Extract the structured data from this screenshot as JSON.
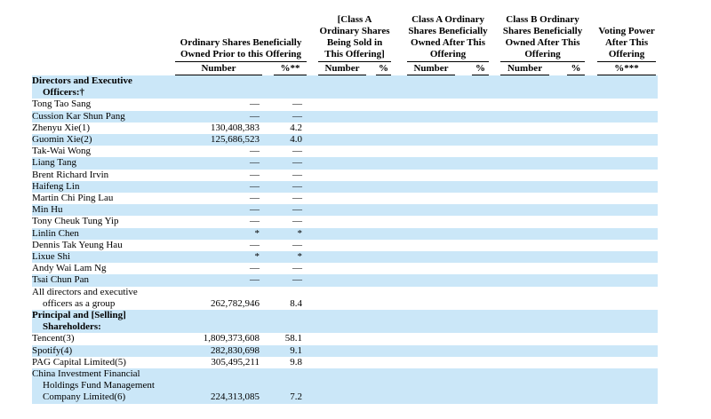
{
  "colors": {
    "row_highlight": "#cbe7f8",
    "rule": "#000000",
    "text": "#000000",
    "page_background": "#ffffff"
  },
  "table": {
    "col_groups": [
      {
        "title_lines": [
          "Ordinary Shares Beneficially",
          "Owned Prior to this Offering"
        ],
        "sub": [
          "Number",
          "%**"
        ]
      },
      {
        "title_lines": [
          "[Class A",
          "Ordinary Shares",
          "Being Sold in",
          "This Offering]"
        ],
        "sub": [
          "Number",
          "%"
        ]
      },
      {
        "title_lines": [
          "Class A Ordinary",
          "Shares Beneficially",
          "Owned After This",
          "Offering"
        ],
        "sub": [
          "Number",
          "%"
        ]
      },
      {
        "title_lines": [
          "Class B Ordinary",
          "Shares Beneficially",
          "Owned After This",
          "Offering"
        ],
        "sub": [
          "Number",
          "%"
        ]
      },
      {
        "title_lines": [
          "Voting Power",
          "After This",
          "Offering"
        ],
        "sub": [
          "%***"
        ]
      }
    ],
    "rows": [
      {
        "name_lines": [
          "Directors and Executive",
          "Officers:†"
        ],
        "bold": true,
        "shaded": true,
        "number": "",
        "pct": ""
      },
      {
        "name_lines": [
          "Tong Tao Sang"
        ],
        "bold": false,
        "shaded": false,
        "number": "—",
        "pct": "—"
      },
      {
        "name_lines": [
          "Cussion Kar Shun Pang"
        ],
        "bold": false,
        "shaded": true,
        "number": "—",
        "pct": "—"
      },
      {
        "name_lines": [
          "Zhenyu Xie(1)"
        ],
        "bold": false,
        "shaded": false,
        "number": "130,408,383",
        "pct": "4.2"
      },
      {
        "name_lines": [
          "Guomin Xie(2)"
        ],
        "bold": false,
        "shaded": true,
        "number": "125,686,523",
        "pct": "4.0"
      },
      {
        "name_lines": [
          "Tak-Wai Wong"
        ],
        "bold": false,
        "shaded": false,
        "number": "—",
        "pct": "—"
      },
      {
        "name_lines": [
          "Liang Tang"
        ],
        "bold": false,
        "shaded": true,
        "number": "—",
        "pct": "—"
      },
      {
        "name_lines": [
          "Brent Richard Irvin"
        ],
        "bold": false,
        "shaded": false,
        "number": "—",
        "pct": "—"
      },
      {
        "name_lines": [
          "Haifeng Lin"
        ],
        "bold": false,
        "shaded": true,
        "number": "—",
        "pct": "—"
      },
      {
        "name_lines": [
          "Martin Chi Ping Lau"
        ],
        "bold": false,
        "shaded": false,
        "number": "—",
        "pct": "—"
      },
      {
        "name_lines": [
          "Min Hu"
        ],
        "bold": false,
        "shaded": true,
        "number": "—",
        "pct": "—"
      },
      {
        "name_lines": [
          "Tony Cheuk Tung Yip"
        ],
        "bold": false,
        "shaded": false,
        "number": "—",
        "pct": "—"
      },
      {
        "name_lines": [
          "Linlin Chen"
        ],
        "bold": false,
        "shaded": true,
        "number": "*",
        "pct": "*"
      },
      {
        "name_lines": [
          "Dennis Tak Yeung Hau"
        ],
        "bold": false,
        "shaded": false,
        "number": "—",
        "pct": "—"
      },
      {
        "name_lines": [
          "Lixue Shi"
        ],
        "bold": false,
        "shaded": true,
        "number": "*",
        "pct": "*"
      },
      {
        "name_lines": [
          "Andy Wai Lam Ng"
        ],
        "bold": false,
        "shaded": false,
        "number": "—",
        "pct": "—"
      },
      {
        "name_lines": [
          "Tsai Chun Pan"
        ],
        "bold": false,
        "shaded": true,
        "number": "—",
        "pct": "—"
      },
      {
        "name_lines": [
          "All directors and executive",
          "officers as a group"
        ],
        "bold": false,
        "shaded": false,
        "number": "262,782,946",
        "pct": "8.4"
      },
      {
        "name_lines": [
          "Principal and [Selling]",
          "Shareholders:"
        ],
        "bold": true,
        "shaded": true,
        "number": "",
        "pct": ""
      },
      {
        "name_lines": [
          "Tencent(3)"
        ],
        "bold": false,
        "shaded": false,
        "number": "1,809,373,608",
        "pct": "58.1"
      },
      {
        "name_lines": [
          "Spotify(4)"
        ],
        "bold": false,
        "shaded": true,
        "number": "282,830,698",
        "pct": "9.1"
      },
      {
        "name_lines": [
          "PAG Capital Limited(5)"
        ],
        "bold": false,
        "shaded": false,
        "number": "305,495,211",
        "pct": "9.8"
      },
      {
        "name_lines": [
          "China Investment Financial",
          "Holdings Fund Management",
          "Company Limited(6)"
        ],
        "bold": false,
        "shaded": true,
        "number": "224,313,085",
        "pct": "7.2"
      }
    ]
  }
}
